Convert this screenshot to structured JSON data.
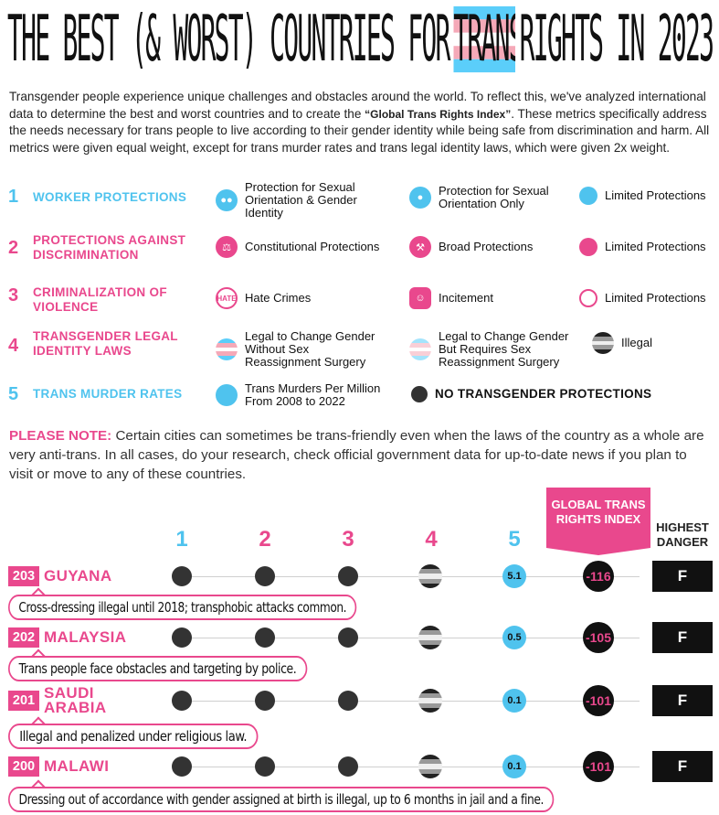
{
  "title": {
    "before": "THE BEST (& WORST) COUNTRIES FOR",
    "highlight": "TRANS",
    "after": "RIGHTS IN 2023"
  },
  "intro": {
    "part1": "Transgender people experience unique challenges and obstacles around the world. To reflect this, we've analyzed international data to determine the best and worst countries and to create the ",
    "index_name": "“Global Trans Rights Index”",
    "part2": ". These metrics specifically address the needs necessary for trans people to live according to their gender identity while being safe from discrimination and harm. All metrics were given equal weight, except for trans murder rates and trans legal identity laws, which were given 2x weight."
  },
  "legend": [
    {
      "num": "1",
      "label": "WORKER PROTECTIONS",
      "color": "#4fc3ee",
      "items": [
        "Protection for Sexual Orientation & Gender Identity",
        "Protection for Sexual Orientation Only",
        "Limited Protections"
      ]
    },
    {
      "num": "2",
      "label": "PROTECTIONS AGAINST DISCRIMINATION",
      "color": "#e9488d",
      "items": [
        "Constitutional Protections",
        "Broad Protections",
        "Limited Protections"
      ]
    },
    {
      "num": "3",
      "label": "CRIMINALIZATION OF VIOLENCE",
      "color": "#e9488d",
      "items": [
        "Hate Crimes",
        "Incitement",
        "Limited Protections"
      ]
    },
    {
      "num": "4",
      "label": "TRANSGENDER LEGAL IDENTITY LAWS",
      "color": "#e9488d",
      "items": [
        "Legal to Change Gender Without Sex Reassignment Surgery",
        "Legal to Change Gender But Requires Sex Reassignment Surgery",
        "Illegal"
      ]
    },
    {
      "num": "5",
      "label": "TRANS MURDER RATES",
      "color": "#4fc3ee",
      "items": [
        "Trans Murders Per Million From 2008 to 2022",
        "NO TRANSGENDER PROTECTIONS"
      ]
    }
  ],
  "hate_icon_text": "HATE",
  "note": {
    "label": "PLEASE NOTE:",
    "text": " Certain cities can sometimes be trans-friendly even when the laws of the country as a whole are very anti-trans. In all cases, do your research, check official government data for up-to-date news if you plan to visit or move to any of these countries."
  },
  "columns": [
    "1",
    "2",
    "3",
    "4",
    "5"
  ],
  "index_header": "GLOBAL TRANS RIGHTS INDEX",
  "danger_header": "HIGHEST DANGER",
  "countries": [
    {
      "rank": "203",
      "name": "GUYANA",
      "murder": "5.1",
      "score": "-116",
      "grade": "F",
      "desc": "Cross-dressing illegal until 2018; transphobic attacks common."
    },
    {
      "rank": "202",
      "name": "MALAYSIA",
      "murder": "0.5",
      "score": "-105",
      "grade": "F",
      "desc": "Trans people face obstacles and targeting by police."
    },
    {
      "rank": "201",
      "name": "SAUDI ARABIA",
      "murder": "0.1",
      "score": "-101",
      "grade": "F",
      "desc": "Illegal and penalized under religious law."
    },
    {
      "rank": "200",
      "name": "MALAWI",
      "murder": "0.1",
      "score": "-101",
      "grade": "F",
      "desc": "Dressing out of accordance with gender assigned at birth is illegal, up to 6 months in jail and a fine."
    }
  ],
  "colors": {
    "pink": "#e9488d",
    "blue": "#4fc3ee",
    "dark": "#333333",
    "trans_pink": "#f5a9b8",
    "trans_blue": "#5bcefa"
  }
}
